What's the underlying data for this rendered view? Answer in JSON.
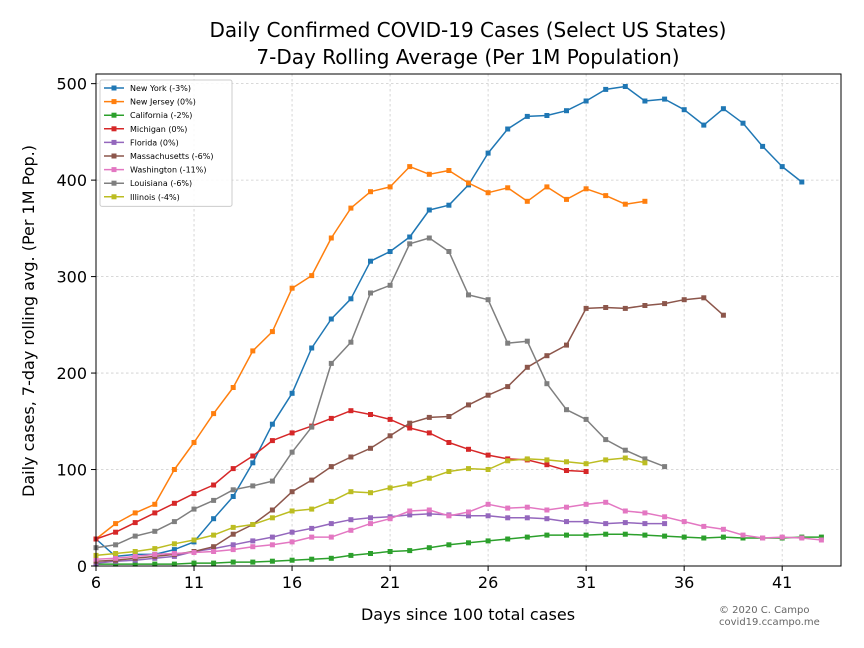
{
  "chart_data": {
    "type": "line",
    "title": "Daily Confirmed COVID-19 Cases (Select US States)",
    "subtitle": "7-Day Rolling Average (Per 1M Population)",
    "xlabel": "Days since 100 total cases",
    "ylabel": "Daily cases, 7-day rolling avg. (Per 1M Pop.)",
    "xlim": [
      6,
      44
    ],
    "ylim": [
      0,
      510
    ],
    "xticks": [
      6,
      11,
      16,
      21,
      26,
      31,
      36,
      41
    ],
    "yticks": [
      0,
      100,
      200,
      300,
      400,
      500
    ],
    "grid": true,
    "legend_position": "top-left",
    "credit": [
      "© 2020 C. Campo",
      "covid19.ccampo.me"
    ],
    "series": [
      {
        "name": "New York (-3%)",
        "color": "#1f77b4",
        "x_start": 6,
        "values": [
          28,
          10,
          12,
          12,
          17,
          25,
          49,
          72,
          107,
          147,
          179,
          226,
          256,
          277,
          316,
          326,
          341,
          369,
          374,
          395,
          428,
          453,
          466,
          467,
          472,
          482,
          494,
          497,
          482,
          484,
          473,
          457,
          474,
          459,
          435,
          414,
          398
        ]
      },
      {
        "name": "New Jersey (0%)",
        "color": "#ff7f0e",
        "x_start": 6,
        "values": [
          28,
          44,
          55,
          64,
          100,
          128,
          158,
          185,
          223,
          243,
          288,
          301,
          340,
          371,
          388,
          393,
          414,
          406,
          410,
          397,
          387,
          392,
          378,
          393,
          380,
          391,
          384,
          375,
          378
        ]
      },
      {
        "name": "California (-2%)",
        "color": "#2ca02c",
        "x_start": 6,
        "values": [
          2,
          2,
          2,
          2,
          2,
          3,
          3,
          4,
          4,
          5,
          6,
          7,
          8,
          11,
          13,
          15,
          16,
          19,
          22,
          24,
          26,
          28,
          30,
          32,
          32,
          32,
          33,
          33,
          32,
          31,
          30,
          29,
          30,
          29,
          29,
          29,
          30,
          30
        ]
      },
      {
        "name": "Michigan (0%)",
        "color": "#d62728",
        "x_start": 6,
        "values": [
          28,
          35,
          45,
          55,
          65,
          75,
          84,
          101,
          114,
          130,
          138,
          145,
          153,
          161,
          157,
          152,
          143,
          138,
          128,
          121,
          115,
          111,
          110,
          105,
          99,
          98
        ]
      },
      {
        "name": "Florida (0%)",
        "color": "#9467bd",
        "x_start": 6,
        "values": [
          3,
          5,
          6,
          8,
          10,
          15,
          18,
          22,
          26,
          30,
          35,
          39,
          44,
          48,
          50,
          51,
          53,
          54,
          53,
          52,
          52,
          50,
          50,
          49,
          46,
          46,
          44,
          45,
          44,
          44
        ]
      },
      {
        "name": "Massachusetts (-6%)",
        "color": "#8c564b",
        "x_start": 6,
        "values": [
          5,
          6,
          8,
          10,
          12,
          15,
          20,
          33,
          43,
          58,
          77,
          89,
          103,
          113,
          122,
          135,
          148,
          154,
          155,
          167,
          177,
          186,
          206,
          218,
          229,
          267,
          268,
          267,
          270,
          272,
          276,
          278,
          260
        ]
      },
      {
        "name": "Washington (-11%)",
        "color": "#e377c2",
        "x_start": 6,
        "values": [
          7,
          8,
          10,
          12,
          13,
          14,
          15,
          17,
          20,
          22,
          25,
          30,
          30,
          37,
          44,
          49,
          57,
          58,
          52,
          56,
          64,
          60,
          61,
          58,
          61,
          64,
          66,
          57,
          55,
          51,
          46,
          41,
          38,
          32,
          29,
          30,
          29,
          27
        ]
      },
      {
        "name": "Louisiana (-6%)",
        "color": "#7f7f7f",
        "x_start": 6,
        "values": [
          19,
          22,
          31,
          36,
          46,
          59,
          68,
          79,
          83,
          88,
          118,
          144,
          210,
          232,
          283,
          291,
          334,
          340,
          326,
          281,
          276,
          231,
          233,
          189,
          162,
          152,
          131,
          120,
          111,
          103
        ]
      },
      {
        "name": "Illinois (-4%)",
        "color": "#bcbd22",
        "x_start": 6,
        "values": [
          11,
          13,
          15,
          18,
          23,
          27,
          32,
          40,
          43,
          50,
          57,
          59,
          67,
          77,
          76,
          81,
          85,
          91,
          98,
          101,
          100,
          109,
          111,
          110,
          108,
          106,
          110,
          112,
          107
        ]
      }
    ]
  }
}
